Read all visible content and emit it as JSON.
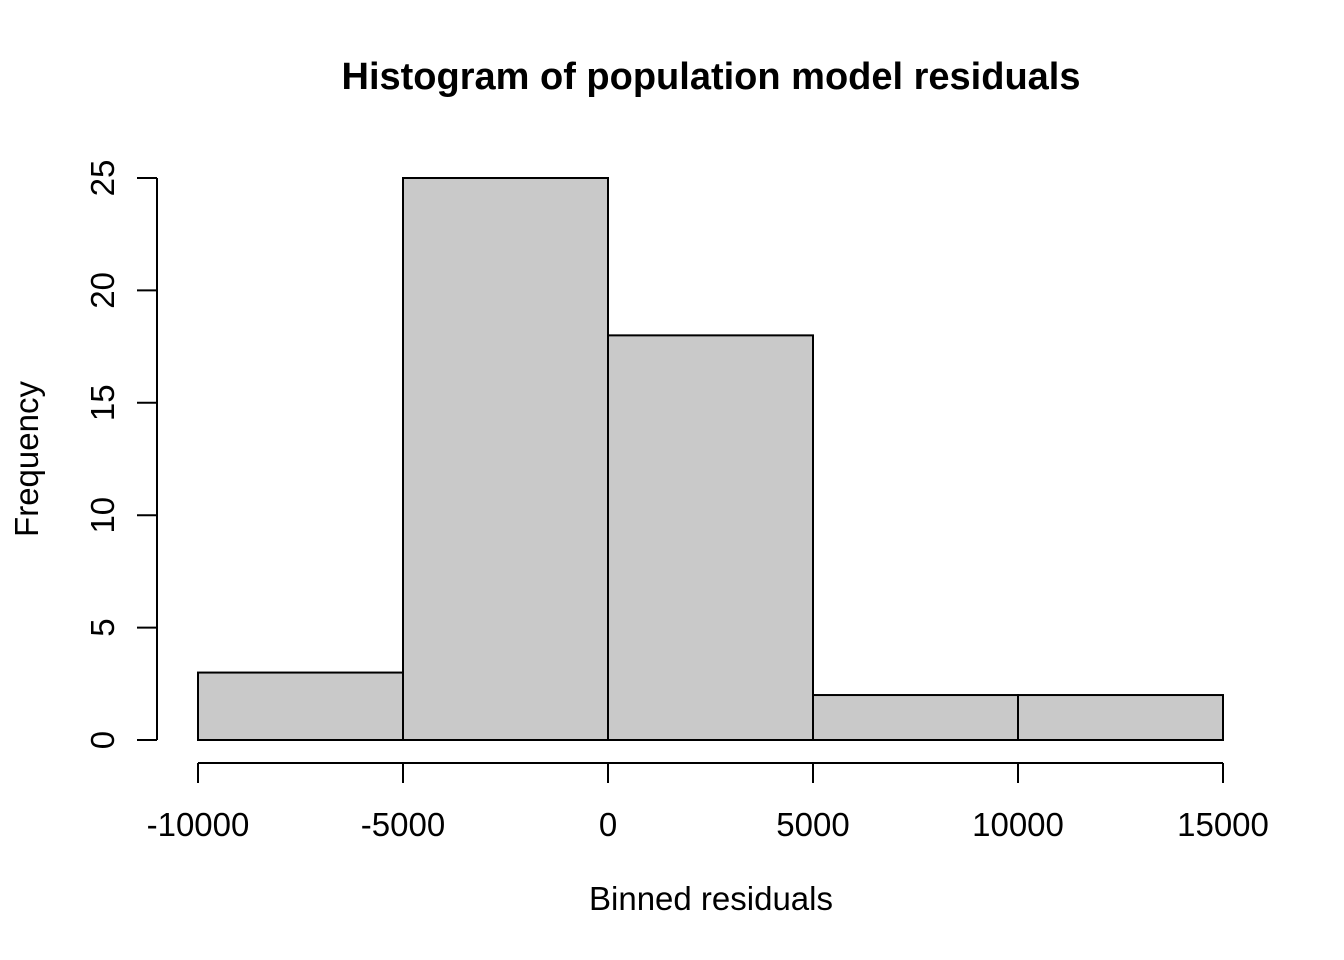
{
  "chart_data": {
    "type": "bar",
    "subtype": "histogram",
    "title": "Histogram of population model residuals",
    "xlabel": "Binned residuals",
    "ylabel": "Frequency",
    "bin_edges": [
      -10000,
      -5000,
      0,
      5000,
      10000,
      15000
    ],
    "counts": [
      3,
      25,
      18,
      2,
      2
    ],
    "x_ticks": [
      {
        "value": -10000,
        "label": "-10000"
      },
      {
        "value": -5000,
        "label": "-5000"
      },
      {
        "value": 0,
        "label": "0"
      },
      {
        "value": 5000,
        "label": "5000"
      },
      {
        "value": 10000,
        "label": "10000"
      },
      {
        "value": 15000,
        "label": "15000"
      }
    ],
    "y_ticks": [
      {
        "value": 0,
        "label": "0"
      },
      {
        "value": 5,
        "label": "5"
      },
      {
        "value": 10,
        "label": "10"
      },
      {
        "value": 15,
        "label": "15"
      },
      {
        "value": 20,
        "label": "20"
      },
      {
        "value": 25,
        "label": "25"
      }
    ],
    "xlim": [
      -10000,
      15000
    ],
    "ylim": [
      0,
      25
    ],
    "grid": "off",
    "legend": "none",
    "colors": {
      "bar_fill": "#c9c9c9",
      "bar_stroke": "#000000",
      "axis": "#000000",
      "background": "#ffffff"
    }
  }
}
